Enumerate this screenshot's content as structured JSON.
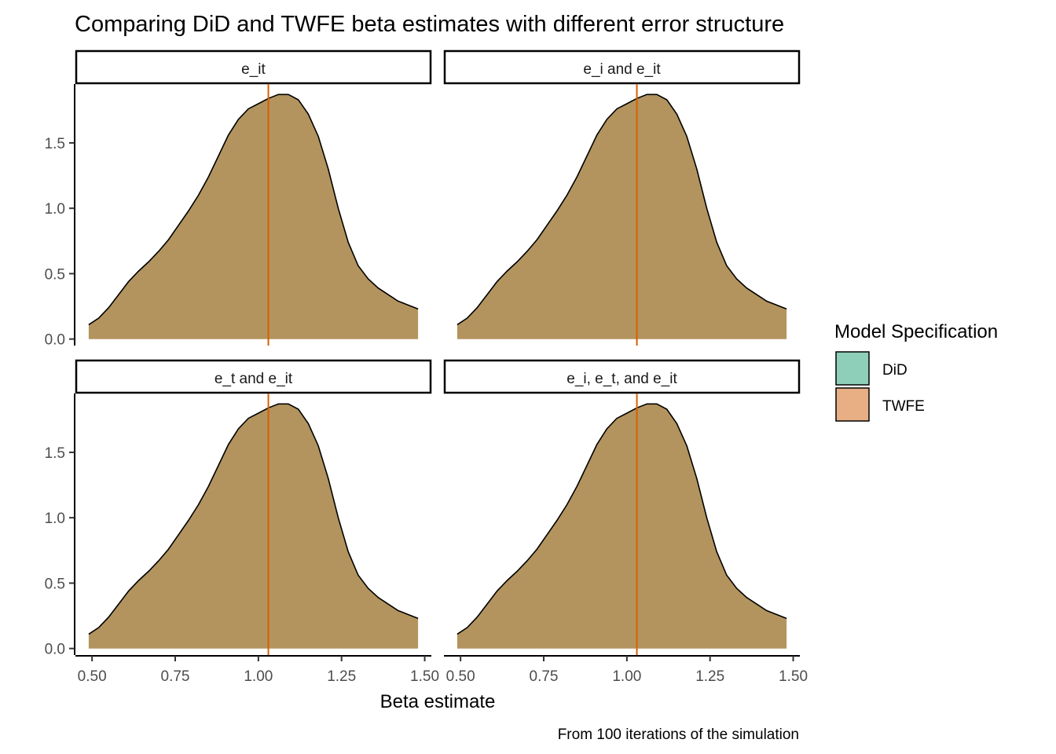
{
  "chart_data": {
    "type": "area",
    "subtype": "density",
    "title": "Comparing DiD and TWFE beta estimates with different error structure",
    "xlabel": "Beta estimate",
    "ylabel": "",
    "caption": "From 100 iterations of the simulation",
    "xlim": [
      0.45,
      1.52
    ],
    "ylim": [
      -0.05,
      1.95
    ],
    "x_ticks": [
      0.5,
      0.75,
      1.0,
      1.25,
      1.5
    ],
    "x_tick_labels": [
      "0.50",
      "0.75",
      "1.00",
      "1.25",
      "1.50"
    ],
    "y_ticks": [
      0.0,
      0.5,
      1.0,
      1.5
    ],
    "y_tick_labels": [
      "0.0",
      "0.5",
      "1.0",
      "1.5"
    ],
    "legend": {
      "title": "Model Specification",
      "position": "right",
      "entries": [
        {
          "label": "DiD",
          "color": "#8ecfb9"
        },
        {
          "label": "TWFE",
          "color": "#e8ae84"
        }
      ]
    },
    "overlap_fill_color": "#b3945e",
    "vline_color": "#d95f02",
    "grid": false,
    "facets": [
      {
        "label": "e_it",
        "vline_x": 1.03
      },
      {
        "label": "e_i and e_it",
        "vline_x": 1.03
      },
      {
        "label": "e_t and e_it",
        "vline_x": 1.03
      },
      {
        "label": "e_i, e_t, and e_it",
        "vline_x": 1.03
      }
    ],
    "series": [
      {
        "name": "DiD",
        "x": [
          0.49,
          0.52,
          0.55,
          0.58,
          0.61,
          0.64,
          0.67,
          0.7,
          0.73,
          0.76,
          0.79,
          0.82,
          0.85,
          0.88,
          0.91,
          0.94,
          0.97,
          1.0,
          1.03,
          1.06,
          1.09,
          1.12,
          1.15,
          1.18,
          1.21,
          1.24,
          1.27,
          1.3,
          1.33,
          1.36,
          1.39,
          1.42,
          1.45,
          1.48
        ],
        "y": [
          0.11,
          0.16,
          0.24,
          0.34,
          0.44,
          0.52,
          0.59,
          0.67,
          0.76,
          0.87,
          0.98,
          1.1,
          1.24,
          1.4,
          1.56,
          1.68,
          1.76,
          1.8,
          1.84,
          1.87,
          1.87,
          1.83,
          1.72,
          1.55,
          1.3,
          1.0,
          0.74,
          0.56,
          0.46,
          0.39,
          0.34,
          0.29,
          0.26,
          0.23
        ]
      },
      {
        "name": "TWFE",
        "x": [
          0.49,
          0.52,
          0.55,
          0.58,
          0.61,
          0.64,
          0.67,
          0.7,
          0.73,
          0.76,
          0.79,
          0.82,
          0.85,
          0.88,
          0.91,
          0.94,
          0.97,
          1.0,
          1.03,
          1.06,
          1.09,
          1.12,
          1.15,
          1.18,
          1.21,
          1.24,
          1.27,
          1.3,
          1.33,
          1.36,
          1.39,
          1.42,
          1.45,
          1.48
        ],
        "y": [
          0.11,
          0.16,
          0.24,
          0.34,
          0.44,
          0.52,
          0.59,
          0.67,
          0.76,
          0.87,
          0.98,
          1.1,
          1.24,
          1.4,
          1.56,
          1.68,
          1.76,
          1.8,
          1.84,
          1.87,
          1.87,
          1.83,
          1.72,
          1.55,
          1.3,
          1.0,
          0.74,
          0.56,
          0.46,
          0.39,
          0.34,
          0.29,
          0.26,
          0.23
        ]
      }
    ]
  }
}
